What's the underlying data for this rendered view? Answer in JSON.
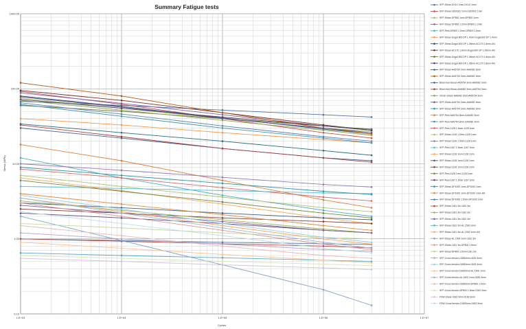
{
  "chart_data": {
    "type": "line",
    "title": "Summary Fatigue tests",
    "xlabel": "Cycles",
    "ylabel": "Stress (MPa)",
    "x_scale": "log",
    "y_scale": "log",
    "xlim": [
      1000,
      10000000
    ],
    "ylim": [
      0.1,
      1000
    ],
    "x_tick_labels": [
      "1.E+03",
      "1.E+04",
      "1.E+05",
      "1.E+06",
      "1.E+07"
    ],
    "y_tick_labels": [
      "0.10",
      "1.00",
      "10.00",
      "100.00",
      "1000.00"
    ],
    "grid": true,
    "legend_position": "right",
    "x": [
      1000,
      10000,
      100000,
      1000000,
      3000000
    ],
    "series": [
      {
        "name": "SFP-Shear-DX1X 1mm-DX1X 1mm",
        "color": "#4a6fa5",
        "values": [
          68,
          60,
          52,
          45,
          42
        ]
      },
      {
        "name": "SFP-Shear-1810002 1mm-1810002 1mm",
        "color": "#c0504d",
        "values": [
          92,
          62,
          40,
          26,
          22
        ]
      },
      {
        "name": "SFP-Shear-DP800 1mm-DP800 1mm",
        "color": "#9bbb59",
        "values": [
          75,
          55,
          40,
          30,
          27
        ]
      },
      {
        "name": "SFP-Shear-DP800 1.2mm-DP800 1.2mm",
        "color": "#8064a2",
        "values": [
          88,
          64,
          45,
          32,
          28
        ]
      },
      {
        "name": "SFP-Peel-DP800 1.2mm-DP800 1.2mm",
        "color": "#4bacc6",
        "values": [
          12,
          6.5,
          3.8,
          2.4,
          2.0
        ]
      },
      {
        "name": "SFP-Shear-Dogal 800 DP 1.4mm-Dogal 800 DP 1.4mm",
        "color": "#f79646",
        "values": [
          40,
          33,
          26,
          21,
          19
        ]
      },
      {
        "name": "SFP-Shear-Dogal 800 DP 1.05mm-AC170 1.8mm-AN",
        "color": "#2c4d75",
        "values": [
          80,
          58,
          41,
          29,
          25
        ]
      },
      {
        "name": "SFP-Shear-AC170 1.8mm-Dogal 800 DP 1.05mm-AN",
        "color": "#772c2a",
        "values": [
          95,
          70,
          48,
          33,
          28
        ]
      },
      {
        "name": "SFP-Shear-Dogal 800 DP 1.05mm-AC170 1.8mm-AN",
        "color": "#5f7530",
        "values": [
          60,
          50,
          40,
          32,
          29
        ]
      },
      {
        "name": "SFP-Shear-Dogal 800 DP 1.05mm-AC170 1.8mm-AN",
        "color": "#4d3b62",
        "values": [
          72,
          55,
          42,
          32,
          28
        ]
      },
      {
        "name": "SFP-Shear-AA5754 3mm-AA6082 3mm",
        "color": "#276a7c",
        "values": [
          34,
          26,
          20,
          15,
          13
        ]
      },
      {
        "name": "SFP-Shear-AA5754 3mm-AA6082 3mm",
        "color": "#b65708",
        "values": [
          120,
          80,
          48,
          30,
          25
        ]
      },
      {
        "name": "Blind rivet-Shear-AA5754 3mm-AA6082 3mm",
        "color": "#3f5f8f",
        "values": [
          30,
          22,
          16,
          12,
          11
        ]
      },
      {
        "name": "Blind rivet-Shear-AA6082 3mm-AA5754 3mm",
        "color": "#a53f3c",
        "values": [
          33,
          23,
          16,
          12,
          10.5
        ]
      },
      {
        "name": "Clinch-Shear-AA6082 3mm-AA5754 3mm",
        "color": "#86a34a",
        "values": [
          70,
          52,
          38,
          28,
          24
        ]
      },
      {
        "name": "SFP-Shear-AA5754 3mm-AA6082 3mm",
        "color": "#6b548a",
        "values": [
          78,
          57,
          40,
          30,
          26
        ]
      },
      {
        "name": "SFP-Shear-AA5754 3mm-AA6082 3mm",
        "color": "#3d93aa",
        "values": [
          62,
          43,
          30,
          22,
          19
        ]
      },
      {
        "name": "SFP-Peel-AA5754 3mm-AA6082 3mm",
        "color": "#d97f34",
        "values": [
          18,
          11,
          6.0,
          3.3,
          2.6
        ]
      },
      {
        "name": "SFP-Peel-AA5754 3mm-AA6082 3mm",
        "color": "#5a7fb8",
        "values": [
          65,
          46,
          32,
          23,
          20
        ]
      },
      {
        "name": "SFP-Peel-1128 1.5mm-1128 1mm",
        "color": "#cd6a67",
        "values": [
          8.5,
          6.5,
          4.8,
          3.6,
          3.2
        ]
      },
      {
        "name": "SFP-Shear-1128 1.5mm-1128 1mm",
        "color": "#a8c26c",
        "values": [
          7.0,
          5.0,
          3.6,
          2.6,
          2.3
        ]
      },
      {
        "name": "SFP-Shear-1128 1.5mm-1128 1mm",
        "color": "#9177b0",
        "values": [
          10,
          8.2,
          6.6,
          5.3,
          4.9
        ]
      },
      {
        "name": "SFP-Peel-1167 1.5mm-1167 1mm",
        "color": "#5dbbd1",
        "values": [
          5.0,
          4.7,
          4.4,
          4.1,
          4.0
        ]
      },
      {
        "name": "SFP-Shear-1128 1mm-1128 1mm",
        "color": "#f9a85f",
        "values": [
          6.5,
          4.4,
          2.9,
          1.9,
          1.6
        ]
      },
      {
        "name": "SFP-Shear-1128 1mm-1128 1mm",
        "color": "#3a5a7f",
        "values": [
          3.0,
          2.6,
          2.2,
          1.9,
          1.8
        ]
      },
      {
        "name": "SFP-Shear-1128 1mm-1128 1mm",
        "color": "#8a3a38",
        "values": [
          2.5,
          2.2,
          1.9,
          1.7,
          1.6
        ]
      },
      {
        "name": "SFP-Peel-1128 1mm-1128 1mm",
        "color": "#6e8a3a",
        "values": [
          6.0,
          4.3,
          3.1,
          2.2,
          1.9
        ]
      },
      {
        "name": "SFP-Peel-1167 1.5mm-1167 1mm",
        "color": "#5e4a7a",
        "values": [
          2.2,
          1.9,
          1.6,
          1.3,
          1.2
        ]
      },
      {
        "name": "SFP-Shear-DP1000 1mm-DP1000 1mm",
        "color": "#2e8fa8",
        "values": [
          9.0,
          7.0,
          5.5,
          4.3,
          3.9
        ]
      },
      {
        "name": "SFP-Shear-DP1000 1mm-DP1000 1mm-AN",
        "color": "#e08a3e",
        "values": [
          4.0,
          2.9,
          2.1,
          1.5,
          1.3
        ]
      },
      {
        "name": "SFP-Shear-DP1000 1.5mm-DP1000 1mm",
        "color": "#4f79ad",
        "values": [
          1.0,
          0.95,
          0.9,
          0.86,
          0.84
        ]
      },
      {
        "name": "SFP-Shear-1181 3m-1181 3m",
        "color": "#b84643",
        "values": [
          1.0,
          0.93,
          0.86,
          0.8,
          0.76
        ]
      },
      {
        "name": "SFP-Shear-1181 3m-1181 3m",
        "color": "#93b057",
        "values": [
          3.2,
          2.4,
          1.8,
          1.35,
          1.2
        ]
      },
      {
        "name": "SFP-Shear-1181 3m-1181 3m",
        "color": "#7c6399",
        "values": [
          2.8,
          2.2,
          1.7,
          1.3,
          1.2
        ]
      },
      {
        "name": "SFP-Shear-1181 3m-AL 1500 1mm",
        "color": "#57a9c0",
        "values": [
          0.65,
          0.6,
          0.56,
          0.52,
          0.5
        ]
      },
      {
        "name": "SFP-Shear-1181 3m-AL 1500 1mm-AN",
        "color": "#f5a763",
        "values": [
          3.5,
          2.3,
          1.5,
          1.0,
          0.85
        ]
      },
      {
        "name": "SFP-Shear-AL 1500 1mm-1181 3m",
        "color": "#86a1c8",
        "values": [
          2.0,
          0.95,
          0.45,
          0.21,
          0.13
        ]
      },
      {
        "name": "SFP-Shear-1181 3m-DP800 1.5mm",
        "color": "#d99694",
        "values": [
          3.0,
          2.0,
          1.3,
          0.85,
          0.72
        ]
      },
      {
        "name": "SFP-Shear-DP800 1.5mm-1181 3m",
        "color": "#c3d69b",
        "values": [
          1.6,
          1.4,
          1.2,
          1.05,
          1.0
        ]
      },
      {
        "name": "SFP-Cross tension-01853mm-0183 3mm",
        "color": "#b2a1c7",
        "values": [
          1.2,
          1.0,
          0.85,
          0.72,
          0.68
        ]
      },
      {
        "name": "SFP-Cross tension-01853mm-0183 3mm",
        "color": "#93cddd",
        "values": [
          3.8,
          2.5,
          1.6,
          1.05,
          0.9
        ]
      },
      {
        "name": "SFP-Cross tension-01853mm-AL 1500 1mm",
        "color": "#fac090",
        "values": [
          0.9,
          0.75,
          0.62,
          0.52,
          0.48
        ]
      },
      {
        "name": "SFP-Cross tension-AL 1500 1mm-0183 3mm",
        "color": "#95b3d7",
        "values": [
          3.5,
          2.2,
          1.4,
          0.9,
          0.75
        ]
      },
      {
        "name": "SFP-Cross tension-01853mm-DP800 1.5mm",
        "color": "#e6b9b8",
        "values": [
          1.5,
          1.1,
          0.8,
          0.6,
          0.55
        ]
      },
      {
        "name": "SFP-Cross tension-DP800 1.5mm-0183 3mm",
        "color": "#d7e4bc",
        "values": [
          0.6,
          0.55,
          0.5,
          0.46,
          0.44
        ]
      },
      {
        "name": "FSW-Shear-0183 3mm-0183 3mm",
        "color": "#ccc0da",
        "values": [
          0.55,
          0.5,
          0.45,
          0.41,
          0.39
        ]
      },
      {
        "name": "FSW-Cross tension-01853mm-0183 3mm",
        "color": "#b7dee8",
        "values": [
          2.3,
          1.6,
          1.1,
          0.75,
          0.65
        ]
      }
    ]
  }
}
